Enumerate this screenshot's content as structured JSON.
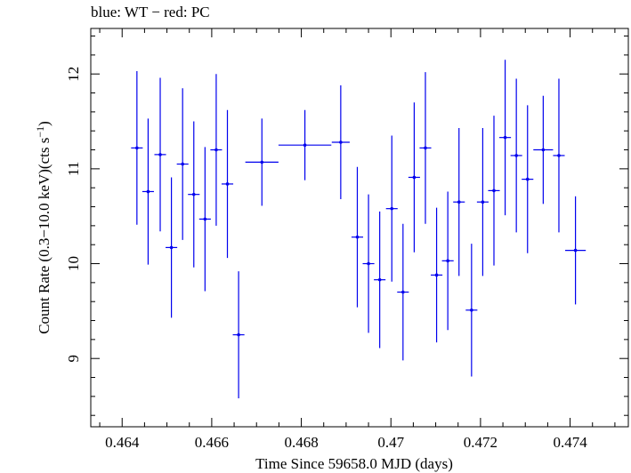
{
  "chart_data": {
    "type": "scatter",
    "title": "blue: WT − red: PC",
    "xlabel": "Time Since 59658.0 MJD (days)",
    "ylabel_main": "Count Rate (0.3−10.0 keV)(cts s",
    "ylabel_sup": "−1",
    "ylabel_close": ")",
    "xlim": [
      0.4633,
      0.4753
    ],
    "ylim": [
      8.28,
      12.48
    ],
    "xticks": [
      0.464,
      0.466,
      0.468,
      0.47,
      0.472,
      0.474
    ],
    "xtick_labels": [
      "0.464",
      "0.466",
      "0.468",
      "0.47",
      "0.472",
      "0.474"
    ],
    "yticks": [
      9,
      10,
      11,
      12
    ],
    "ytick_labels": [
      "9",
      "10",
      "11",
      "12"
    ],
    "grid": false,
    "color": "#0000ee",
    "series": [
      {
        "points": [
          {
            "x": 0.46433,
            "xerr": 0.00013,
            "y": 11.22,
            "yerr": 0.81
          },
          {
            "x": 0.46458,
            "xerr": 0.00013,
            "y": 10.76,
            "yerr": 0.77
          },
          {
            "x": 0.46485,
            "xerr": 0.00013,
            "y": 11.15,
            "yerr": 0.81
          },
          {
            "x": 0.4651,
            "xerr": 0.00013,
            "y": 10.17,
            "yerr": 0.74
          },
          {
            "x": 0.46535,
            "xerr": 0.00013,
            "y": 11.05,
            "yerr": 0.8
          },
          {
            "x": 0.4656,
            "xerr": 0.00013,
            "y": 10.73,
            "yerr": 0.77
          },
          {
            "x": 0.46585,
            "xerr": 0.00013,
            "y": 10.47,
            "yerr": 0.76
          },
          {
            "x": 0.4661,
            "xerr": 0.00013,
            "y": 11.2,
            "yerr": 0.8
          },
          {
            "x": 0.46635,
            "xerr": 0.00013,
            "y": 10.84,
            "yerr": 0.78
          },
          {
            "x": 0.4666,
            "xerr": 0.00013,
            "y": 9.25,
            "yerr": 0.67
          },
          {
            "x": 0.46712,
            "xerr": 0.00037,
            "y": 11.07,
            "yerr": 0.46
          },
          {
            "x": 0.46808,
            "xerr": 0.00059,
            "y": 11.25,
            "yerr": 0.37
          },
          {
            "x": 0.46888,
            "xerr": 0.0002,
            "y": 11.28,
            "yerr": 0.6
          },
          {
            "x": 0.46925,
            "xerr": 0.00013,
            "y": 10.28,
            "yerr": 0.74
          },
          {
            "x": 0.4695,
            "xerr": 0.00013,
            "y": 10.0,
            "yerr": 0.73
          },
          {
            "x": 0.46975,
            "xerr": 0.00013,
            "y": 9.83,
            "yerr": 0.72
          },
          {
            "x": 0.47002,
            "xerr": 0.00013,
            "y": 10.58,
            "yerr": 0.77
          },
          {
            "x": 0.47027,
            "xerr": 0.00013,
            "y": 9.7,
            "yerr": 0.72
          },
          {
            "x": 0.47052,
            "xerr": 0.00013,
            "y": 10.91,
            "yerr": 0.79
          },
          {
            "x": 0.47077,
            "xerr": 0.00013,
            "y": 11.22,
            "yerr": 0.8
          },
          {
            "x": 0.47102,
            "xerr": 0.00013,
            "y": 9.88,
            "yerr": 0.71
          },
          {
            "x": 0.47127,
            "xerr": 0.00013,
            "y": 10.03,
            "yerr": 0.73
          },
          {
            "x": 0.47152,
            "xerr": 0.00013,
            "y": 10.65,
            "yerr": 0.78
          },
          {
            "x": 0.4718,
            "xerr": 0.00013,
            "y": 9.51,
            "yerr": 0.7
          },
          {
            "x": 0.47205,
            "xerr": 0.00013,
            "y": 10.65,
            "yerr": 0.78
          },
          {
            "x": 0.4723,
            "xerr": 0.00013,
            "y": 10.77,
            "yerr": 0.79
          },
          {
            "x": 0.47255,
            "xerr": 0.00013,
            "y": 11.33,
            "yerr": 0.82
          },
          {
            "x": 0.4728,
            "xerr": 0.00013,
            "y": 11.14,
            "yerr": 0.81
          },
          {
            "x": 0.47305,
            "xerr": 0.00013,
            "y": 10.89,
            "yerr": 0.78
          },
          {
            "x": 0.4734,
            "xerr": 0.00022,
            "y": 11.2,
            "yerr": 0.57
          },
          {
            "x": 0.47375,
            "xerr": 0.00013,
            "y": 11.14,
            "yerr": 0.81
          },
          {
            "x": 0.47412,
            "xerr": 0.00023,
            "y": 10.14,
            "yerr": 0.57
          }
        ]
      }
    ]
  }
}
